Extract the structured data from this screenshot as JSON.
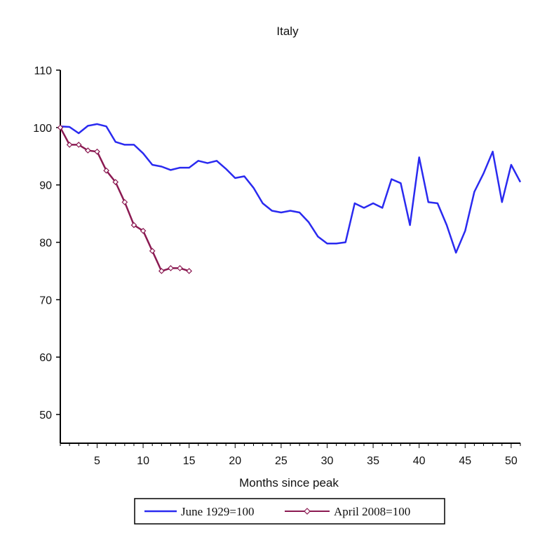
{
  "chart_data": {
    "type": "line",
    "title": "Italy",
    "xlabel": "Months since peak",
    "ylabel": "",
    "xlim": [
      1,
      51
    ],
    "ylim": [
      45,
      110
    ],
    "x_ticks": [
      5,
      10,
      15,
      20,
      25,
      30,
      35,
      40,
      45,
      50
    ],
    "y_ticks": [
      50,
      60,
      70,
      80,
      90,
      100,
      110
    ],
    "grid": false,
    "legend_position": "bottom",
    "series": [
      {
        "name": "June 1929=100",
        "color": "#2a2af0",
        "marker": "none",
        "x": [
          1,
          2,
          3,
          4,
          5,
          6,
          7,
          8,
          9,
          10,
          11,
          12,
          13,
          14,
          15,
          16,
          17,
          18,
          19,
          20,
          21,
          22,
          23,
          24,
          25,
          26,
          27,
          28,
          29,
          30,
          31,
          32,
          33,
          34,
          35,
          36,
          37,
          38,
          39,
          40,
          41,
          42,
          43,
          44,
          45,
          46,
          47,
          48,
          49,
          50,
          51
        ],
        "y": [
          100.2,
          100.1,
          99,
          100.3,
          100.6,
          100.2,
          97.5,
          97,
          97,
          95.5,
          93.5,
          93.2,
          92.6,
          93,
          93,
          94.2,
          93.8,
          94.2,
          92.8,
          91.2,
          91.5,
          89.5,
          86.8,
          85.5,
          85.2,
          85.5,
          85.2,
          83.5,
          81,
          79.8,
          79.8,
          80,
          86.8,
          86,
          86.8,
          86,
          91,
          90.3,
          83,
          94.8,
          87,
          86.8,
          83,
          78.2,
          82,
          88.8,
          92,
          95.8,
          87,
          93.5,
          90.5
        ]
      },
      {
        "name": "April 2008=100",
        "color": "#8b1a52",
        "marker": "diamond",
        "x": [
          1,
          2,
          3,
          4,
          5,
          6,
          7,
          8,
          9,
          10,
          11,
          12,
          13,
          14,
          15
        ],
        "y": [
          100,
          97,
          97,
          96,
          95.8,
          92.5,
          90.5,
          87,
          83,
          82,
          78.5,
          75,
          75.5,
          75.5,
          75
        ]
      }
    ]
  }
}
